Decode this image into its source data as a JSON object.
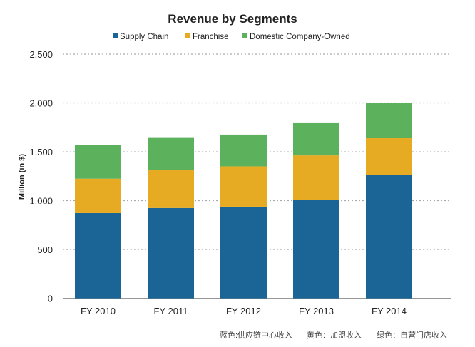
{
  "chart_data": {
    "type": "bar",
    "stacked": true,
    "title": "Revenue by Segments",
    "xlabel": "",
    "ylabel": "Million (in $)",
    "ylim": [
      0,
      2500
    ],
    "yticks": [
      "0",
      "500",
      "1,000",
      "1,500",
      "2,000",
      "2,500"
    ],
    "ytick_values": [
      0,
      500,
      1000,
      1500,
      2000,
      2500
    ],
    "grid": true,
    "legend_position": "top",
    "categories": [
      "FY 2010",
      "FY 2011",
      "FY 2012",
      "FY 2013",
      "FY 2014"
    ],
    "series": [
      {
        "name": "Supply Chain",
        "color": "#1a6496",
        "values": [
          873,
          925,
          939,
          1005,
          1261
        ]
      },
      {
        "name": "Franchise",
        "color": "#e6ab22",
        "values": [
          352,
          388,
          412,
          458,
          383
        ]
      },
      {
        "name": "Domestic Company-Owned",
        "color": "#5cb15c",
        "values": [
          341,
          336,
          325,
          337,
          354
        ]
      }
    ]
  },
  "footnote": {
    "blue": "蓝色:供应链中心收入",
    "yellow": "黄色：加盟收入",
    "green": "绿色：自营门店收入"
  }
}
